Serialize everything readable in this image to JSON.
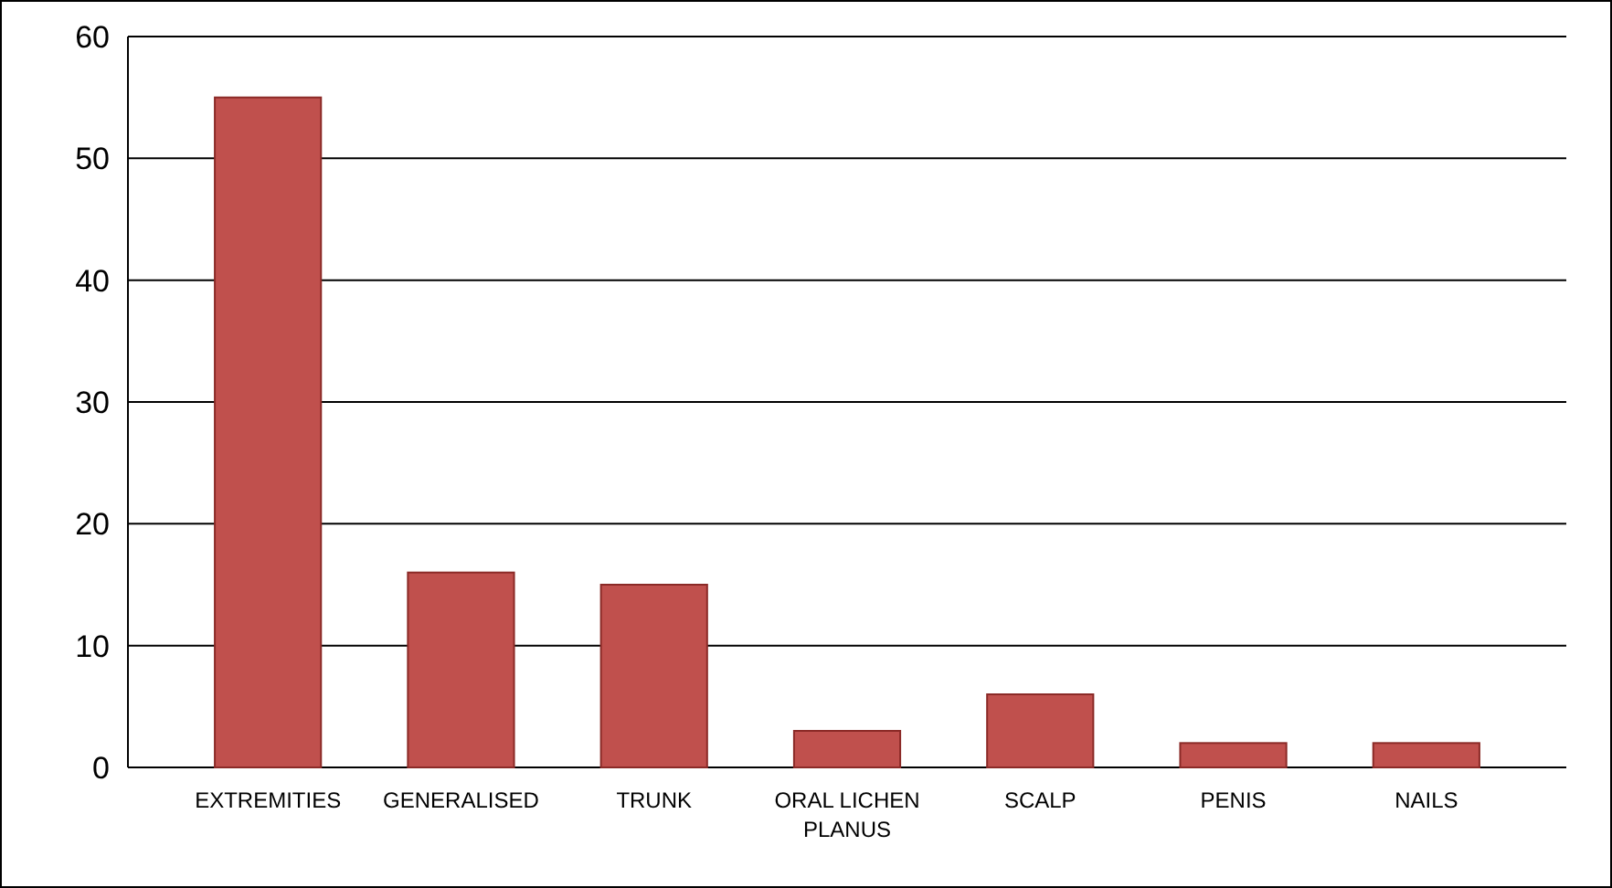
{
  "chart_data": {
    "type": "bar",
    "categories": [
      "EXTREMITIES",
      "GENERALISED",
      "TRUNK",
      "ORAL LICHEN PLANUS",
      "SCALP",
      "PENIS",
      "NAILS"
    ],
    "values": [
      55,
      16,
      15,
      3,
      6,
      2,
      2
    ],
    "color": "#c0504d",
    "ylim": [
      0,
      60
    ],
    "yticks": [
      0,
      10,
      20,
      30,
      40,
      50,
      60
    ],
    "grid": "y"
  }
}
